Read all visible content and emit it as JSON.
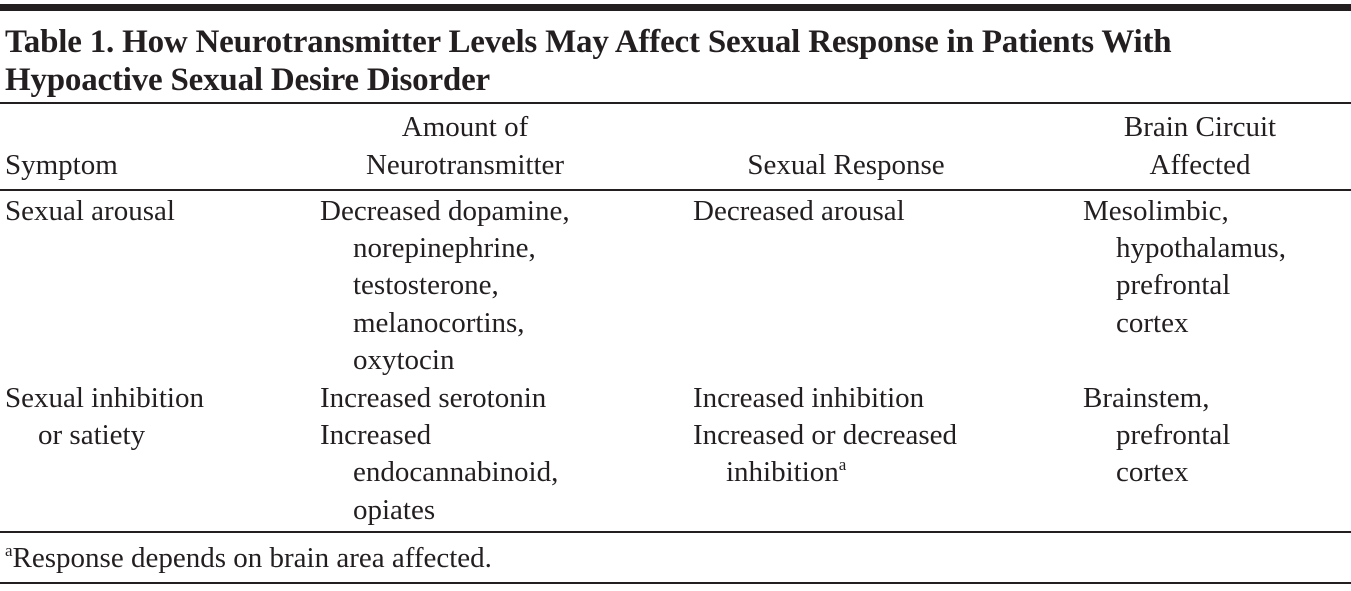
{
  "title": [
    "Table 1. How Neurotransmitter Levels May Affect Sexual Response in Patients With",
    "Hypoactive Sexual Desire Disorder"
  ],
  "table": {
    "header": [
      [
        "Symptom"
      ],
      [
        "Amount of",
        "Neurotransmitter"
      ],
      [
        "Sexual Response"
      ],
      [
        "Brain Circuit",
        "Affected"
      ]
    ],
    "rows": [
      [
        [
          {
            "lines": [
              "Sexual arousal"
            ]
          }
        ],
        [
          {
            "lines": [
              "Decreased dopamine,",
              "norepinephrine,",
              "testosterone,",
              "melanocortins,",
              "oxytocin"
            ]
          }
        ],
        [
          {
            "lines": [
              "Decreased arousal"
            ]
          }
        ],
        [
          {
            "lines": [
              "Mesolimbic,",
              "hypothalamus,",
              "prefrontal",
              "cortex"
            ]
          }
        ]
      ],
      [
        [
          {
            "lines": [
              "Sexual inhibition",
              "or satiety"
            ]
          }
        ],
        [
          {
            "lines": [
              "Increased serotonin"
            ]
          },
          {
            "lines": [
              "Increased",
              "endocannabinoid,",
              "opiates"
            ]
          }
        ],
        [
          {
            "lines": [
              "Increased inhibition"
            ]
          },
          {
            "lines": [
              "Increased or decreased",
              "inhibition"
            ],
            "note": "a"
          }
        ],
        [
          {
            "lines": [
              "Brainstem,",
              "prefrontal",
              "cortex"
            ]
          }
        ]
      ]
    ]
  },
  "footnote": {
    "marker": "a",
    "text": "Response depends on brain area affected."
  }
}
